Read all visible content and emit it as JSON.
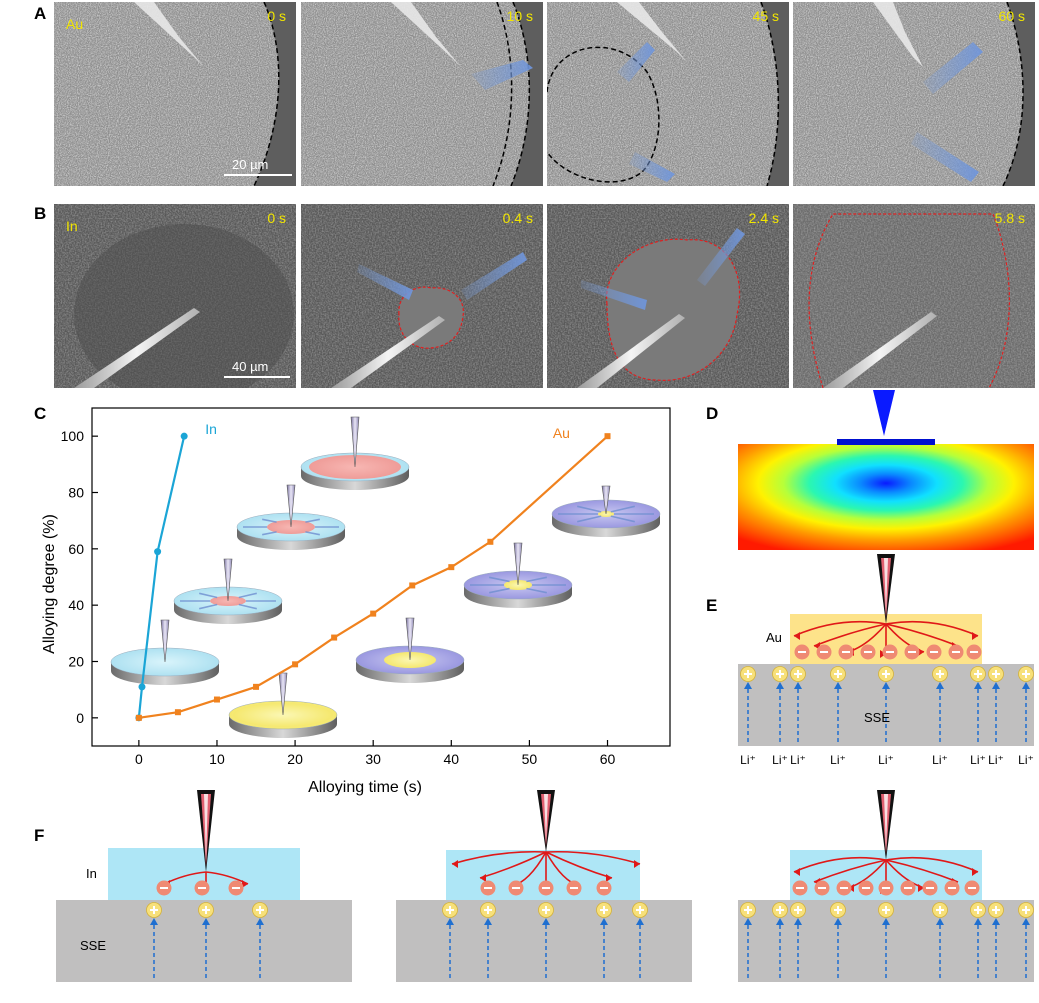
{
  "panels": {
    "A": {
      "letter": "A",
      "material": "Au",
      "scale": "20 µm",
      "times": [
        "0 s",
        "10 s",
        "45 s",
        "60 s"
      ]
    },
    "B": {
      "letter": "B",
      "material": "In",
      "scale": "40 µm",
      "times": [
        "0 s",
        "0.4 s",
        "2.4 s",
        "5.8 s"
      ]
    },
    "C": {
      "letter": "C"
    },
    "D": {
      "letter": "D"
    },
    "E": {
      "letter": "E",
      "layer_label": "Au",
      "substrate_label": "SSE",
      "ion_label": "Li⁺"
    },
    "F": {
      "letter": "F",
      "layer_label": "In",
      "substrate_label": "SSE",
      "ion_label": "Li⁺"
    }
  },
  "colors": {
    "in_series": "#1ba5d6",
    "au_series": "#f0821e",
    "time_text": "#f2e600",
    "boundary_au": "#000000",
    "boundary_in": "#e02020",
    "arrow": "#7b9ed9"
  },
  "chart_data": {
    "type": "line",
    "xlabel": "Alloying time (s)",
    "ylabel": "Alloying degree (%)",
    "xlim": [
      -6,
      68
    ],
    "ylim": [
      -10,
      110
    ],
    "xticks": [
      0,
      10,
      20,
      30,
      40,
      50,
      60
    ],
    "yticks": [
      0,
      20,
      40,
      60,
      80,
      100
    ],
    "series": [
      {
        "name": "In",
        "color": "#1ba5d6",
        "x": [
          0,
          0.4,
          2.4,
          5.8
        ],
        "y": [
          0,
          11,
          59,
          100
        ]
      },
      {
        "name": "Au",
        "color": "#f0821e",
        "x": [
          0,
          5,
          10,
          15,
          20,
          25,
          30,
          35,
          40,
          45,
          60
        ],
        "y": [
          0,
          2,
          6.5,
          11,
          19,
          28.5,
          37,
          47,
          53.5,
          62.5,
          100
        ]
      }
    ]
  }
}
